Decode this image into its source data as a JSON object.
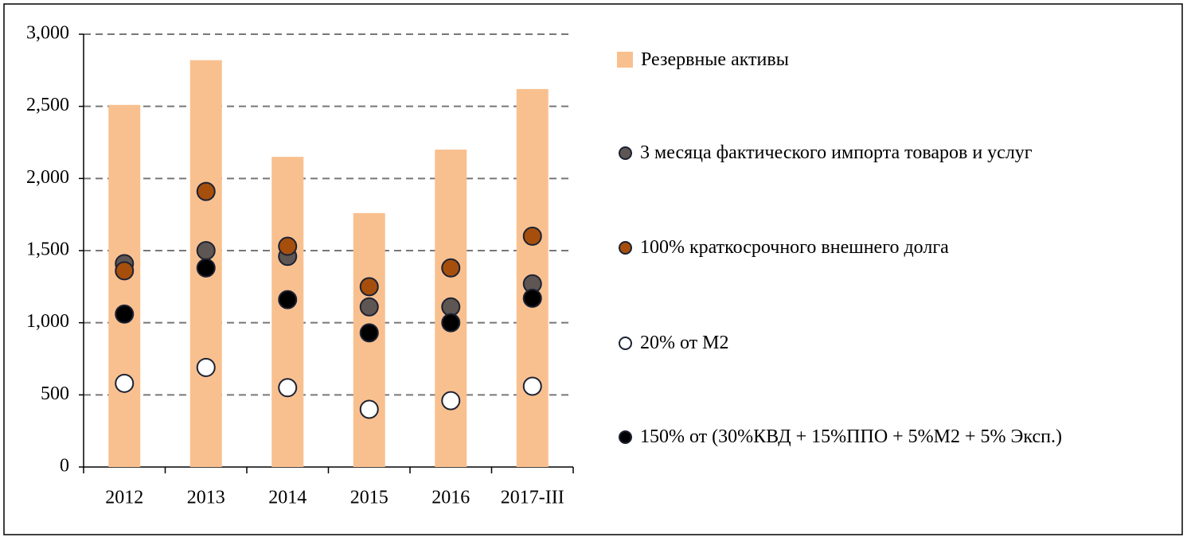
{
  "chart_data": {
    "type": "bar",
    "categories": [
      "2012",
      "2013",
      "2014",
      "2015",
      "2016",
      "2017-III"
    ],
    "series": [
      {
        "name": "Резервные активы",
        "type": "bar",
        "color": "#f9c08f",
        "values": [
          2510,
          2820,
          2150,
          1760,
          2200,
          2620
        ]
      },
      {
        "name": "3 месяца фактического импорта товаров и услуг",
        "type": "scatter",
        "color": "#5e5652",
        "values": [
          1410,
          1500,
          1460,
          1110,
          1110,
          1270
        ]
      },
      {
        "name": "100% краткосрочного внешнего долга",
        "type": "scatter",
        "color": "#a64f0d",
        "values": [
          1360,
          1910,
          1530,
          1250,
          1380,
          1600
        ]
      },
      {
        "name": "20% от М2",
        "type": "scatter",
        "color": "#ffffff",
        "values": [
          580,
          690,
          550,
          400,
          460,
          560
        ]
      },
      {
        "name": "150% от (30%КВД + 15%ППО + 5%М2 + 5% Эксп.)",
        "type": "scatter",
        "color": "#000000",
        "values": [
          1060,
          1380,
          1160,
          930,
          1000,
          1170
        ]
      }
    ],
    "ylim": [
      0,
      3000
    ],
    "yticks": [
      0,
      500,
      {
        "value": 1000,
        "label": "1,000"
      },
      {
        "value": 1500,
        "label": "1,500"
      },
      {
        "value": 2000,
        "label": "2,000"
      },
      {
        "value": 2500,
        "label": "2,500"
      },
      {
        "value": 3000,
        "label": "3,000"
      }
    ],
    "grid": true
  }
}
